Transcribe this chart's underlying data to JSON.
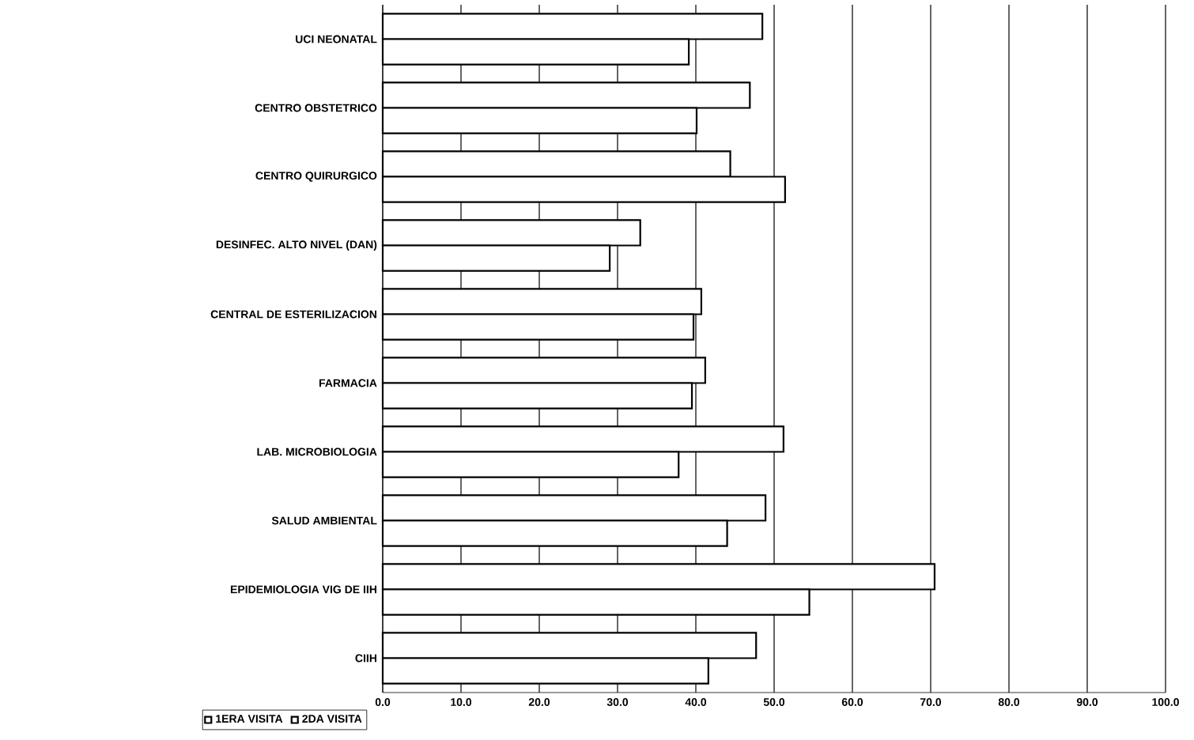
{
  "chart_data": {
    "type": "bar",
    "orientation": "horizontal",
    "categories": [
      "UCI NEONATAL",
      "CENTRO OBSTETRICO",
      "CENTRO QUIRURGICO",
      "DESINFEC. ALTO NIVEL (DAN)",
      "CENTRAL DE ESTERILIZACION",
      "FARMACIA",
      "LAB. MICROBIOLOGIA",
      "SALUD AMBIENTAL",
      "EPIDEMIOLOGIA VIG DE IIH",
      "CIIH"
    ],
    "series": [
      {
        "name": "1ERA VISITA",
        "color": "#ffffff",
        "values": [
          48.5,
          46.9,
          44.4,
          32.9,
          40.7,
          41.2,
          51.2,
          48.9,
          70.5,
          47.7
        ]
      },
      {
        "name": "2DA VISITA",
        "color": "#ffffff",
        "values": [
          39.1,
          40.1,
          51.4,
          29.0,
          39.7,
          39.5,
          37.8,
          44.0,
          54.5,
          41.6
        ]
      }
    ],
    "xlim": [
      0,
      100
    ],
    "xticks": [
      {
        "value": 0,
        "label": "0.0"
      },
      {
        "value": 10,
        "label": "10.0"
      },
      {
        "value": 20,
        "label": "20.0"
      },
      {
        "value": 30,
        "label": "30.0"
      },
      {
        "value": 40,
        "label": "40.0"
      },
      {
        "value": 50,
        "label": "50.0"
      },
      {
        "value": 60,
        "label": "60.0"
      },
      {
        "value": 70,
        "label": "70.0"
      },
      {
        "value": 80,
        "label": "80.0"
      },
      {
        "value": 90,
        "label": "90.0"
      },
      {
        "value": 100,
        "label": "100.0"
      }
    ],
    "grid": "x",
    "legend": "bottom left"
  }
}
